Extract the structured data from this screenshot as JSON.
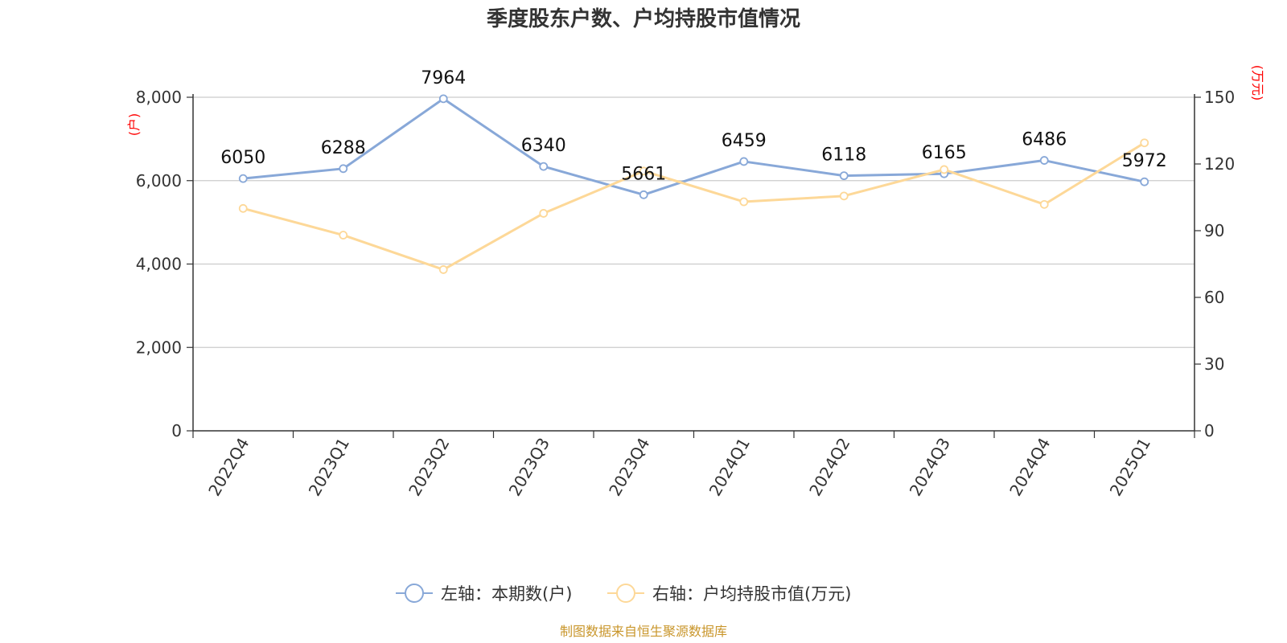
{
  "chart_data": {
    "type": "line",
    "title": "季度股东户数、户均持股市值情况",
    "categories": [
      "2022Q4",
      "2023Q1",
      "2023Q2",
      "2023Q3",
      "2023Q4",
      "2024Q1",
      "2024Q2",
      "2024Q3",
      "2024Q4",
      "2025Q1"
    ],
    "left_axis": {
      "unit": "(户)",
      "ylim": [
        0,
        8000
      ],
      "ticks": [
        "0",
        "2,000",
        "4,000",
        "6,000",
        "8,000"
      ],
      "tick_values": [
        0,
        2000,
        4000,
        6000,
        8000
      ]
    },
    "right_axis": {
      "unit": "(万元)",
      "ylim": [
        0,
        150
      ],
      "ticks": [
        "0",
        "30",
        "60",
        "90",
        "120",
        "150"
      ],
      "tick_values": [
        0,
        30,
        60,
        90,
        120,
        150
      ]
    },
    "grid": true,
    "legend_position": "bottom",
    "series": [
      {
        "name": "左轴：本期数(户)",
        "axis": "left",
        "color": "#88a8d8",
        "values": [
          6050,
          6288,
          7964,
          6340,
          5661,
          6459,
          6118,
          6165,
          6486,
          5972
        ],
        "labels": [
          "6050",
          "6288",
          "7964",
          "6340",
          "5661",
          "6459",
          "6118",
          "6165",
          "6486",
          "5972"
        ]
      },
      {
        "name": "右轴：户均持股市值(万元)",
        "axis": "right",
        "color": "#fdd898",
        "values": [
          100.0,
          88.0,
          72.5,
          97.8,
          116.8,
          103.0,
          105.6,
          117.5,
          101.8,
          129.5
        ]
      }
    ]
  },
  "footer": "制图数据来自恒生聚源数据库"
}
